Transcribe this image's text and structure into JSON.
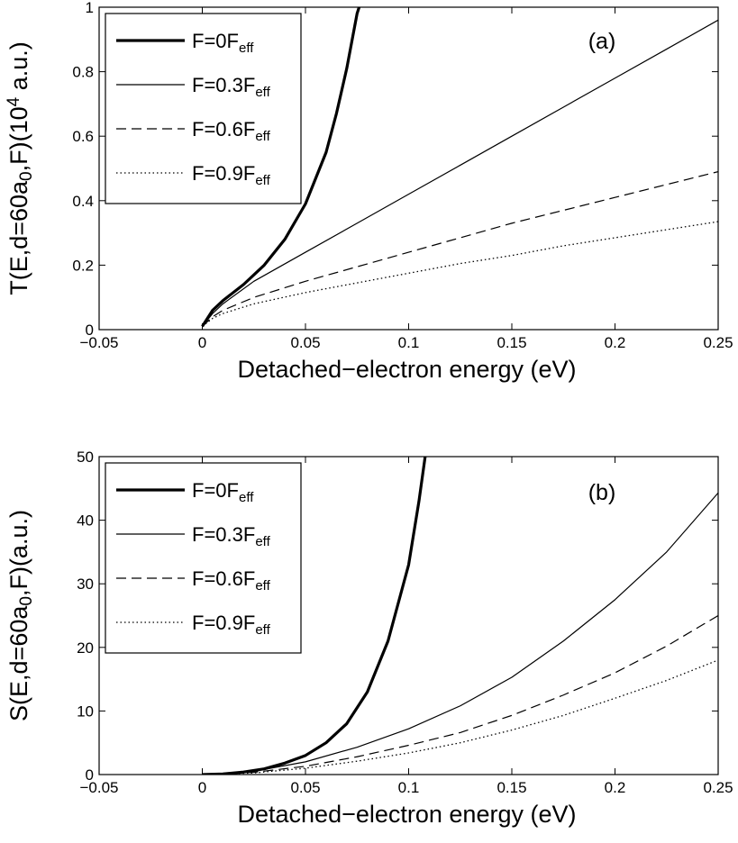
{
  "chart_data": [
    {
      "type": "line",
      "panel_label": "(a)",
      "xlabel": "Detached−electron energy (eV)",
      "ylabel": {
        "parts": [
          {
            "text": "T(E,d=60a"
          },
          {
            "text": "0",
            "sub": true
          },
          {
            "text": ",F)(10"
          },
          {
            "text": "4",
            "sup": true
          },
          {
            "text": " a.u.)"
          }
        ]
      },
      "xlim": [
        -0.05,
        0.25
      ],
      "ylim": [
        0,
        1
      ],
      "xticks": [
        -0.05,
        0,
        0.05,
        0.1,
        0.15,
        0.2,
        0.25
      ],
      "xtick_labels": [
        "−0.05",
        "0",
        "0.05",
        "0.1",
        "0.15",
        "0.2",
        "0.25"
      ],
      "yticks": [
        0,
        0.2,
        0.4,
        0.6,
        0.8,
        1
      ],
      "ytick_labels": [
        "0",
        "0.2",
        "0.4",
        "0.6",
        "0.8",
        "1"
      ],
      "grid": false,
      "legend_position": "top-left",
      "series": [
        {
          "label": "F=0",
          "label_sub": "eff",
          "line_label": "F",
          "style": "solid-thick",
          "x": [
            0,
            0.005,
            0.01,
            0.02,
            0.03,
            0.04,
            0.05,
            0.06,
            0.065,
            0.07,
            0.075,
            0.076
          ],
          "y": [
            0.01,
            0.06,
            0.09,
            0.14,
            0.2,
            0.28,
            0.39,
            0.55,
            0.67,
            0.81,
            0.98,
            1.0
          ]
        },
        {
          "label": "F=0.3",
          "label_sub": "eff",
          "line_label": "F",
          "style": "solid-thin",
          "x": [
            0,
            0.005,
            0.01,
            0.025,
            0.05,
            0.075,
            0.1,
            0.125,
            0.15,
            0.175,
            0.2,
            0.225,
            0.25
          ],
          "y": [
            0.01,
            0.05,
            0.08,
            0.15,
            0.24,
            0.33,
            0.42,
            0.51,
            0.6,
            0.69,
            0.78,
            0.87,
            0.96
          ]
        },
        {
          "label": "F=0.6",
          "label_sub": "eff",
          "line_label": "F",
          "style": "dashed",
          "x": [
            0,
            0.005,
            0.01,
            0.025,
            0.05,
            0.075,
            0.1,
            0.125,
            0.15,
            0.175,
            0.2,
            0.225,
            0.25
          ],
          "y": [
            0.01,
            0.04,
            0.06,
            0.1,
            0.15,
            0.195,
            0.24,
            0.285,
            0.33,
            0.37,
            0.41,
            0.45,
            0.49
          ]
        },
        {
          "label": "F=0.9",
          "label_sub": "eff",
          "line_label": "F",
          "style": "dotted",
          "x": [
            0,
            0.005,
            0.01,
            0.025,
            0.05,
            0.075,
            0.1,
            0.125,
            0.15,
            0.175,
            0.2,
            0.225,
            0.25
          ],
          "y": [
            0.01,
            0.035,
            0.05,
            0.08,
            0.115,
            0.145,
            0.175,
            0.205,
            0.23,
            0.26,
            0.285,
            0.31,
            0.335
          ]
        }
      ]
    },
    {
      "type": "line",
      "panel_label": "(b)",
      "xlabel": "Detached−electron energy (eV)",
      "ylabel": {
        "parts": [
          {
            "text": "S(E,d=60a"
          },
          {
            "text": "0",
            "sub": true
          },
          {
            "text": ",F)(a.u.)"
          }
        ]
      },
      "xlim": [
        -0.05,
        0.25
      ],
      "ylim": [
        0,
        50
      ],
      "xticks": [
        -0.05,
        0,
        0.05,
        0.1,
        0.15,
        0.2,
        0.25
      ],
      "xtick_labels": [
        "−0.05",
        "0",
        "0.05",
        "0.1",
        "0.15",
        "0.2",
        "0.25"
      ],
      "yticks": [
        0,
        10,
        20,
        30,
        40,
        50
      ],
      "ytick_labels": [
        "0",
        "10",
        "20",
        "30",
        "40",
        "50"
      ],
      "grid": false,
      "legend_position": "top-left",
      "series": [
        {
          "label": "F=0",
          "label_sub": "eff",
          "line_label": "F",
          "style": "solid-thick",
          "x": [
            0,
            0.01,
            0.02,
            0.03,
            0.04,
            0.05,
            0.06,
            0.07,
            0.08,
            0.09,
            0.1,
            0.105,
            0.108
          ],
          "y": [
            0,
            0.1,
            0.4,
            0.9,
            1.8,
            3.0,
            5.0,
            8.0,
            13.0,
            21.0,
            33.0,
            43.0,
            50.0
          ]
        },
        {
          "label": "F=0.3",
          "label_sub": "eff",
          "line_label": "F",
          "style": "solid-thin",
          "x": [
            0,
            0.025,
            0.05,
            0.075,
            0.1,
            0.125,
            0.15,
            0.175,
            0.2,
            0.225,
            0.25
          ],
          "y": [
            0,
            0.5,
            2.0,
            4.3,
            7.2,
            10.8,
            15.3,
            21.0,
            27.5,
            35.0,
            44.3
          ]
        },
        {
          "label": "F=0.6",
          "label_sub": "eff",
          "line_label": "F",
          "style": "dashed",
          "x": [
            0,
            0.025,
            0.05,
            0.075,
            0.1,
            0.125,
            0.15,
            0.175,
            0.2,
            0.225,
            0.25
          ],
          "y": [
            0,
            0.35,
            1.3,
            2.8,
            4.6,
            6.6,
            9.3,
            12.5,
            16.0,
            20.2,
            25.0
          ]
        },
        {
          "label": "F=0.9",
          "label_sub": "eff",
          "line_label": "F",
          "style": "dotted",
          "x": [
            0,
            0.025,
            0.05,
            0.075,
            0.1,
            0.125,
            0.15,
            0.175,
            0.2,
            0.225,
            0.25
          ],
          "y": [
            0,
            0.25,
            1.0,
            2.1,
            3.4,
            5.0,
            7.0,
            9.3,
            12.0,
            14.8,
            18.0
          ]
        }
      ]
    }
  ]
}
